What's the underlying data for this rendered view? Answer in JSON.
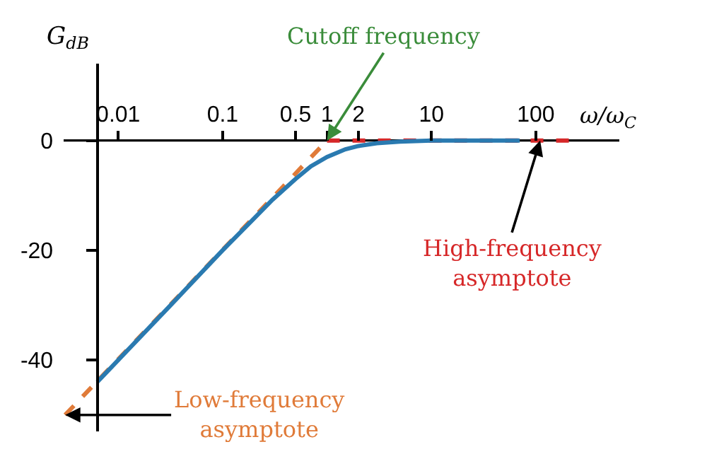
{
  "chart_data": {
    "type": "line",
    "xlabel": "ω/ω$_{C}$",
    "ylabel": "G$_{dB}$",
    "log": "x",
    "xlim": [
      0.003,
      630
    ],
    "ylim": [
      -53,
      14
    ],
    "xticks": [
      0.01,
      0.1,
      0.5,
      1,
      2,
      10,
      100
    ],
    "yticks": [
      0,
      -20,
      -40
    ],
    "series": [
      {
        "color": "#e07b39",
        "line_style": "dashed",
        "x": [
          0.0031,
          1
        ],
        "values": [
          -50,
          0
        ]
      },
      {
        "color": "#d62728",
        "line_style": "dashed",
        "x": [
          1,
          210
        ],
        "values": [
          0,
          0
        ]
      },
      {
        "color": "#2a7ab0",
        "line_style": "solid",
        "x": [
          0.0063,
          0.01,
          0.03,
          0.1,
          0.2,
          0.3,
          0.5,
          0.7,
          1,
          1.5,
          2,
          3,
          5,
          10,
          70
        ],
        "values": [
          -44,
          -40,
          -30.5,
          -20,
          -14.2,
          -10.8,
          -7,
          -4.7,
          -3,
          -1.6,
          -1,
          -0.5,
          -0.2,
          0,
          0
        ]
      }
    ],
    "annotations": [
      {
        "text": "Cutoff frequency",
        "x": 1,
        "y": 0
      },
      {
        "text": "High-frequency\nasymptote",
        "x": 110,
        "y": 0
      },
      {
        "text": "Low-frequency\nasymptote",
        "x": 0.0031,
        "y": -50
      }
    ]
  }
}
